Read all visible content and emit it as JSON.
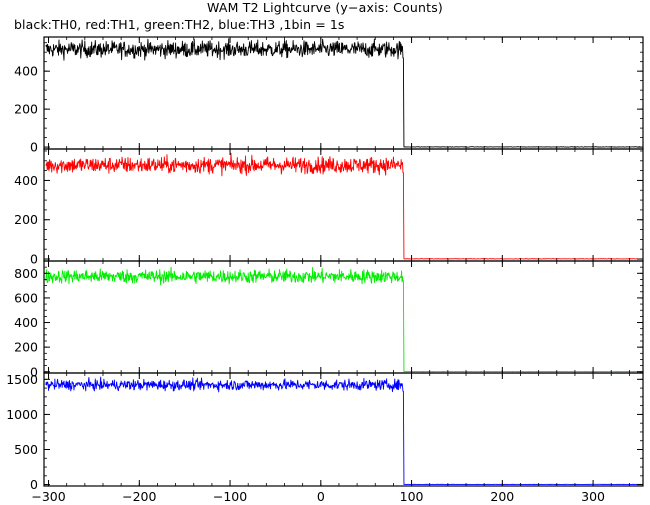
{
  "chart_data": {
    "type": "line",
    "title": "WAM T2 Lightcurve (y−axis: Counts)",
    "subtitle": "black:TH0, red:TH1, green:TH2, blue:TH3 ,1bin = 1s",
    "xlabel": "",
    "ylabel": "",
    "xlim": [
      -305,
      355
    ],
    "x_ticks": [
      -300,
      -200,
      -100,
      0,
      100,
      200,
      300
    ],
    "x_tick_labels": [
      "−300",
      "−200",
      "−100",
      "0",
      "100",
      "200",
      "300"
    ],
    "cutoff_x": 91,
    "bin_seconds": 1,
    "grid": false,
    "panels": [
      {
        "name": "TH0",
        "color": "#000000",
        "ylim": [
          -10,
          580
        ],
        "y_ticks": [
          0,
          200,
          400
        ],
        "level_before": 515,
        "noise": 22,
        "level_after": 1,
        "drop_value": 470
      },
      {
        "name": "TH1",
        "color": "#ff0000",
        "ylim": [
          -10,
          560
        ],
        "y_ticks": [
          0,
          200,
          400
        ],
        "level_before": 478,
        "noise": 21,
        "level_after": 1,
        "drop_value": 440
      },
      {
        "name": "TH2",
        "color": "#00ee00",
        "ylim": [
          -10,
          900
        ],
        "y_ticks": [
          0,
          200,
          400,
          600,
          800
        ],
        "level_before": 775,
        "noise": 28,
        "level_after": 2,
        "drop_value": 740
      },
      {
        "name": "TH3",
        "color": "#0000ff",
        "ylim": [
          -20,
          1590
        ],
        "y_ticks": [
          0,
          500,
          1000,
          1500
        ],
        "level_before": 1420,
        "noise": 38,
        "level_after": 3,
        "drop_value": 1330
      }
    ]
  }
}
